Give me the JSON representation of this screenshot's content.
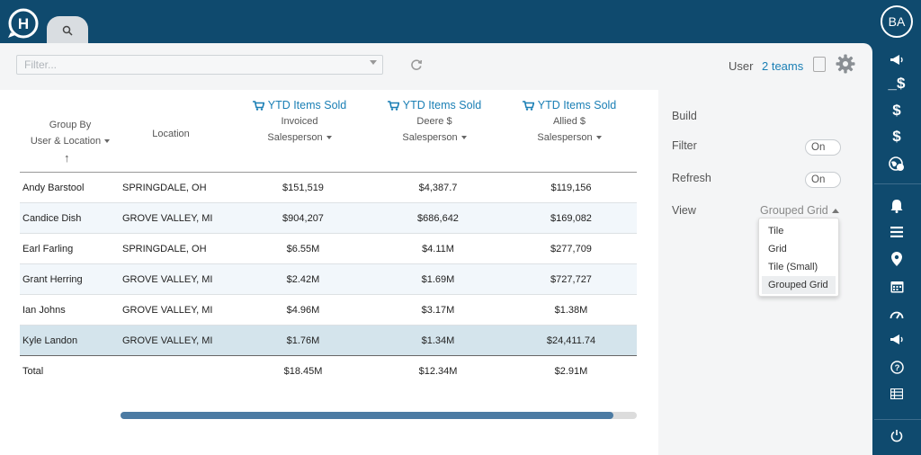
{
  "filter": {
    "placeholder": "Filter..."
  },
  "header": {
    "user_label": "User",
    "teams_link": "2 teams"
  },
  "avatar": {
    "initials": "BA"
  },
  "grid": {
    "group_by": {
      "line1": "Group By",
      "line2": "User & Location"
    },
    "location_header": "Location",
    "columns": [
      {
        "title": "YTD Items Sold",
        "sub": "Invoiced",
        "group": "Salesperson"
      },
      {
        "title": "YTD Items Sold",
        "sub": "Deere $",
        "group": "Salesperson"
      },
      {
        "title": "YTD Items Sold",
        "sub": "Allied $",
        "group": "Salesperson"
      }
    ],
    "rows": [
      {
        "name": "Andy Barstool",
        "location": "SPRINGDALE, OH",
        "v1": "$151,519",
        "v2": "$4,387.7",
        "v3": "$119,156"
      },
      {
        "name": "Candice Dish",
        "location": "GROVE VALLEY, MI",
        "v1": "$904,207",
        "v2": "$686,642",
        "v3": "$169,082"
      },
      {
        "name": "Earl Farling",
        "location": "SPRINGDALE, OH",
        "v1": "$6.55M",
        "v2": "$4.11M",
        "v3": "$277,709"
      },
      {
        "name": "Grant Herring",
        "location": "GROVE VALLEY, MI",
        "v1": "$2.42M",
        "v2": "$1.69M",
        "v3": "$727,727"
      },
      {
        "name": "Ian Johns",
        "location": "GROVE VALLEY, MI",
        "v1": "$4.96M",
        "v2": "$3.17M",
        "v3": "$1.38M"
      },
      {
        "name": "Kyle Landon",
        "location": "GROVE VALLEY, MI",
        "v1": "$1.76M",
        "v2": "$1.34M",
        "v3": "$24,411.74"
      }
    ],
    "total": {
      "label": "Total",
      "v1": "$18.45M",
      "v2": "$12.34M",
      "v3": "$2.91M"
    }
  },
  "settings": {
    "build_label": "Build",
    "filter_label": "Filter",
    "filter_toggle": "On",
    "refresh_label": "Refresh",
    "refresh_toggle": "On",
    "view_label": "View",
    "view_value": "Grouped Grid",
    "view_options": [
      "Tile",
      "Grid",
      "Tile (Small)",
      "Grouped Grid"
    ]
  },
  "colors": {
    "brand": "#0f4a6e",
    "accent": "#1a7fb5",
    "highlight_row": "#d4e4ec"
  },
  "sidebar_icons": [
    "megaphone-icon",
    "dollar-underscore-icon",
    "dollar-icon",
    "dollar-icon",
    "globe-dollar-icon",
    "bell-icon",
    "menu-icon",
    "location-pin-icon",
    "calendar-icon",
    "speedometer-icon",
    "megaphone-icon",
    "help-icon",
    "list-icon",
    "power-icon"
  ]
}
